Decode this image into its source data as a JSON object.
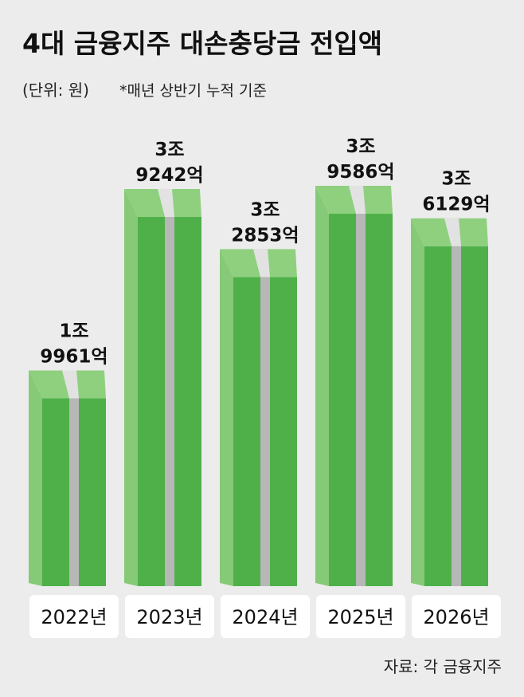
{
  "chart_data": {
    "type": "bar",
    "title": "4대 금융지주 대손충당금 전입액",
    "unit": "(단위: 원)",
    "subtitle": "*매년 상반기 누적 기준",
    "source": "자료: 각 금융지주",
    "categories": [
      "2022년",
      "2023년",
      "2024년",
      "2025년",
      "2026년"
    ],
    "values": [
      19961,
      39242,
      32853,
      39586,
      36129
    ],
    "value_labels": [
      "1조 9961억",
      "3조 9242억",
      "3조 2853억",
      "3조 9586억",
      "3조 6129억"
    ],
    "color": "#4fb04a"
  }
}
